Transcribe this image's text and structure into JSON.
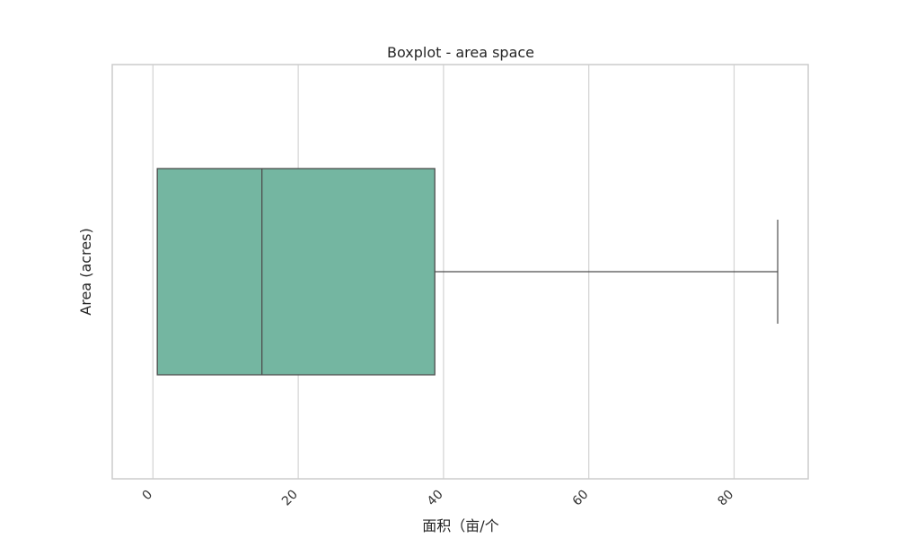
{
  "chart_data": {
    "type": "boxplot",
    "title": "Boxplot - area space",
    "xlabel": "面积（亩/个",
    "ylabel": "Area (acres)",
    "orientation": "horizontal",
    "xlim": [
      -5.6,
      90.2
    ],
    "xticks": [
      0,
      20,
      40,
      60,
      80
    ],
    "xtick_labels": [
      "0",
      "20",
      "40",
      "60",
      "80"
    ],
    "xtick_rotation_deg": 45,
    "grid": true,
    "box": {
      "whisker_low": 0.6,
      "q1": 0.6,
      "median": 15.0,
      "q3": 38.8,
      "whisker_high": 86.0
    },
    "colors": {
      "box_fill": "#74b6a1",
      "box_edge": "#4d4d4d",
      "grid": "#d3d3d3",
      "frame": "#cccccc"
    }
  }
}
